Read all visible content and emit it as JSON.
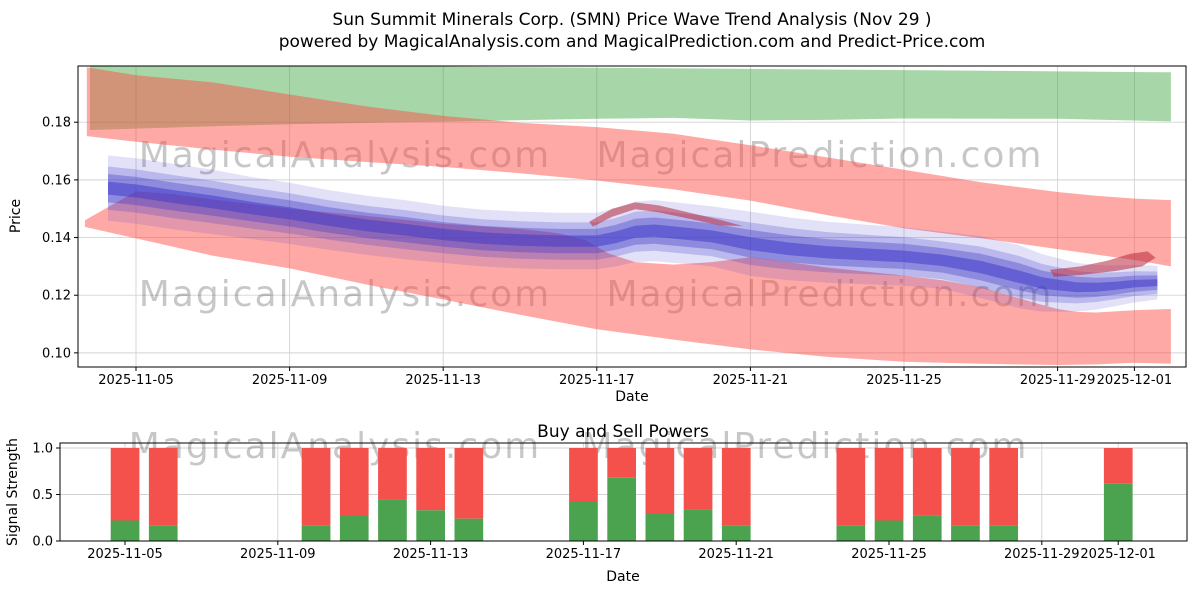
{
  "figure": {
    "title_line1": "Sun Summit Minerals Corp. (SMN) Price Wave Trend Analysis (Nov 29 )",
    "title_line2": "powered by MagicalAnalysis.com and MagicalPrediction.com and Predict-Price.com"
  },
  "watermarks": [
    "MagicalAnalysis.com",
    "MagicalPrediction.com"
  ],
  "colors": {
    "green_band": "#2e9e33",
    "green_alpha": 0.42,
    "red_band": "#ff4b46",
    "red_alpha": 0.48,
    "fan_color": "#3a35c8",
    "red_streak": "#b8283c",
    "bar_green": "#4ba34f",
    "bar_red": "#f4514c",
    "grid": "#d3d3d3",
    "watermark": "#8a8a8a",
    "axis": "#000000"
  },
  "chart_data": [
    {
      "type": "area",
      "name": "price-wave-trend",
      "ylabel": "Price",
      "xlabel": "Date",
      "ylim": [
        0.0951,
        0.1995
      ],
      "yticks": [
        "0.10",
        "0.12",
        "0.14",
        "0.16",
        "0.18"
      ],
      "ytick_values": [
        0.1,
        0.12,
        0.14,
        0.16,
        0.18
      ],
      "xticks": [
        {
          "label": "2025-11-05",
          "day": 0
        },
        {
          "label": "2025-11-09",
          "day": 4
        },
        {
          "label": "2025-11-13",
          "day": 8
        },
        {
          "label": "2025-11-17",
          "day": 12
        },
        {
          "label": "2025-11-21",
          "day": 16
        },
        {
          "label": "2025-11-25",
          "day": 20
        },
        {
          "label": "2025-11-29",
          "day": 24
        },
        {
          "label": "2025-12-01",
          "day": 26
        }
      ],
      "bands": {
        "green": {
          "top": [
            [
              -1.2,
              0.1997
            ],
            [
              8,
              0.1993
            ],
            [
              16,
              0.1985
            ],
            [
              26.95,
              0.1973
            ]
          ],
          "bottom": [
            [
              -1.2,
              0.1773
            ],
            [
              2,
              0.1786
            ],
            [
              4,
              0.1793
            ],
            [
              8,
              0.1802
            ],
            [
              12,
              0.1812
            ],
            [
              14,
              0.1815
            ],
            [
              16,
              0.1806
            ],
            [
              18,
              0.1808
            ],
            [
              20,
              0.1813
            ],
            [
              24,
              0.1812
            ],
            [
              26.95,
              0.1803
            ]
          ]
        },
        "red_upper": {
          "top": [
            [
              -1.28,
              0.199
            ],
            [
              0,
              0.1963
            ],
            [
              2,
              0.1938
            ],
            [
              4,
              0.1896
            ],
            [
              6,
              0.1855
            ],
            [
              8,
              0.1822
            ],
            [
              10,
              0.1798
            ],
            [
              12,
              0.1783
            ],
            [
              14,
              0.176
            ],
            [
              16,
              0.172
            ],
            [
              18,
              0.1678
            ],
            [
              20,
              0.1635
            ],
            [
              22,
              0.1592
            ],
            [
              24,
              0.1558
            ],
            [
              25,
              0.1545
            ],
            [
              26,
              0.1535
            ],
            [
              26.95,
              0.153
            ]
          ],
          "bottom": [
            [
              -1.28,
              0.1752
            ],
            [
              0,
              0.1732
            ],
            [
              2,
              0.1705
            ],
            [
              4,
              0.168
            ],
            [
              6,
              0.1662
            ],
            [
              8,
              0.1645
            ],
            [
              10,
              0.1623
            ],
            [
              12,
              0.1598
            ],
            [
              14,
              0.1567
            ],
            [
              16,
              0.1528
            ],
            [
              18,
              0.1478
            ],
            [
              20,
              0.1432
            ],
            [
              22,
              0.1398
            ],
            [
              24,
              0.136
            ],
            [
              26,
              0.1322
            ],
            [
              26.95,
              0.13
            ]
          ]
        },
        "red_lower": {
          "top": [
            [
              -1.33,
              0.146
            ],
            [
              0,
              0.156
            ],
            [
              1,
              0.155
            ],
            [
              2,
              0.1532
            ],
            [
              4,
              0.15
            ],
            [
              6,
              0.1475
            ],
            [
              8,
              0.1448
            ],
            [
              10,
              0.143
            ],
            [
              11,
              0.1415
            ],
            [
              11.7,
              0.1392
            ],
            [
              12.3,
              0.1345
            ],
            [
              13,
              0.1315
            ],
            [
              14,
              0.1306
            ],
            [
              15,
              0.1315
            ],
            [
              16,
              0.1332
            ],
            [
              17,
              0.1315
            ],
            [
              18,
              0.1296
            ],
            [
              19,
              0.1282
            ],
            [
              20,
              0.1268
            ],
            [
              21,
              0.1252
            ],
            [
              22,
              0.1228
            ],
            [
              23,
              0.119
            ],
            [
              23.5,
              0.117
            ],
            [
              24,
              0.1152
            ],
            [
              24.5,
              0.1142
            ],
            [
              25,
              0.114
            ],
            [
              26,
              0.1148
            ],
            [
              26.95,
              0.1152
            ]
          ],
          "bottom": [
            [
              -1.33,
              0.1437
            ],
            [
              0,
              0.1397
            ],
            [
              2,
              0.1337
            ],
            [
              4,
              0.1293
            ],
            [
              6,
              0.1237
            ],
            [
              8,
              0.1185
            ],
            [
              10,
              0.1132
            ],
            [
              12,
              0.1082
            ],
            [
              14,
              0.1046
            ],
            [
              16,
              0.1012
            ],
            [
              18,
              0.0986
            ],
            [
              20,
              0.0969
            ],
            [
              22,
              0.0962
            ],
            [
              24,
              0.0958
            ],
            [
              25,
              0.096
            ],
            [
              26,
              0.0966
            ],
            [
              26.95,
              0.0962
            ]
          ]
        }
      },
      "fan": {
        "days": [
          -0.73,
          0,
          1,
          2,
          3,
          4,
          5,
          6,
          7,
          8,
          9,
          10,
          11,
          12,
          12.5,
          13,
          13.5,
          14,
          15,
          16,
          17,
          18,
          19,
          20,
          21,
          22,
          23,
          23.6,
          24.5,
          25,
          25.5,
          26,
          26.6
        ],
        "top": [
          0.1685,
          0.1675,
          0.1655,
          0.1635,
          0.161,
          0.159,
          0.1565,
          0.1545,
          0.153,
          0.151,
          0.1497,
          0.149,
          0.1486,
          0.1486,
          0.1502,
          0.1525,
          0.153,
          0.1523,
          0.1508,
          0.149,
          0.147,
          0.1455,
          0.1445,
          0.1436,
          0.142,
          0.1405,
          0.1373,
          0.1342,
          0.1312,
          0.1305,
          0.1303,
          0.1305,
          0.1302
        ],
        "bottom": [
          0.1458,
          0.1448,
          0.1428,
          0.1412,
          0.1395,
          0.1378,
          0.1358,
          0.134,
          0.1325,
          0.1312,
          0.13,
          0.1293,
          0.129,
          0.129,
          0.13,
          0.1315,
          0.1318,
          0.1312,
          0.13,
          0.1267,
          0.1252,
          0.1243,
          0.1238,
          0.1233,
          0.1222,
          0.119,
          0.1155,
          0.1143,
          0.1143,
          0.115,
          0.1162,
          0.1175,
          0.1185
        ],
        "layers": [
          {
            "scale": 1.0,
            "opacity": 0.15
          },
          {
            "scale": 0.66,
            "opacity": 0.24
          },
          {
            "scale": 0.43,
            "opacity": 0.34
          },
          {
            "scale": 0.2,
            "opacity": 0.5
          }
        ]
      },
      "red_streaks": [
        [
          [
            11.8,
            0.1455
          ],
          [
            12.4,
            0.15
          ],
          [
            13,
            0.1522
          ],
          [
            13.6,
            0.1512
          ],
          [
            14.3,
            0.149
          ],
          [
            15.2,
            0.1462
          ],
          [
            15.8,
            0.144
          ],
          [
            15.2,
            0.1442
          ],
          [
            14.3,
            0.1468
          ],
          [
            13.6,
            0.1488
          ],
          [
            13,
            0.1498
          ],
          [
            12.4,
            0.1472
          ],
          [
            11.9,
            0.1438
          ]
        ],
        [
          [
            23.8,
            0.1288
          ],
          [
            24.6,
            0.13
          ],
          [
            25.3,
            0.132
          ],
          [
            25.9,
            0.1344
          ],
          [
            26.35,
            0.1352
          ],
          [
            26.55,
            0.133
          ],
          [
            26.2,
            0.13
          ],
          [
            25.5,
            0.1284
          ],
          [
            24.6,
            0.127
          ],
          [
            23.9,
            0.1264
          ]
        ]
      ]
    },
    {
      "type": "bar",
      "name": "buy-sell-powers",
      "title": "Buy and Sell Powers",
      "ylabel": "Signal Strength",
      "xlabel": "Date",
      "ylim": [
        0,
        1.054
      ],
      "yticks": [
        "0.0",
        "0.5",
        "1.0"
      ],
      "ytick_values": [
        0.0,
        0.5,
        1.0
      ],
      "xticks": [
        {
          "label": "2025-11-05",
          "day": 0
        },
        {
          "label": "2025-11-09",
          "day": 4
        },
        {
          "label": "2025-11-13",
          "day": 8
        },
        {
          "label": "2025-11-17",
          "day": 12
        },
        {
          "label": "2025-11-21",
          "day": 16
        },
        {
          "label": "2025-11-25",
          "day": 20
        },
        {
          "label": "2025-11-29",
          "day": 24
        },
        {
          "label": "2025-12-01",
          "day": 26
        }
      ],
      "series": [
        {
          "name": "buy",
          "color_key": "bar_green"
        },
        {
          "name": "sell",
          "color_key": "bar_red"
        }
      ],
      "bars": [
        {
          "date": "2025-11-05",
          "day": 0,
          "buy": 0.22,
          "sell": 0.78
        },
        {
          "date": "2025-11-06",
          "day": 1,
          "buy": 0.17,
          "sell": 0.83
        },
        {
          "date": "2025-11-10",
          "day": 5,
          "buy": 0.17,
          "sell": 0.83
        },
        {
          "date": "2025-11-11",
          "day": 6,
          "buy": 0.28,
          "sell": 0.72
        },
        {
          "date": "2025-11-12",
          "day": 7,
          "buy": 0.45,
          "sell": 0.55
        },
        {
          "date": "2025-11-13",
          "day": 8,
          "buy": 0.33,
          "sell": 0.67
        },
        {
          "date": "2025-11-14",
          "day": 9,
          "buy": 0.24,
          "sell": 0.76
        },
        {
          "date": "2025-11-17",
          "day": 12,
          "buy": 0.43,
          "sell": 0.57
        },
        {
          "date": "2025-11-18",
          "day": 13,
          "buy": 0.68,
          "sell": 0.32
        },
        {
          "date": "2025-11-19",
          "day": 14,
          "buy": 0.29,
          "sell": 0.71
        },
        {
          "date": "2025-11-20",
          "day": 15,
          "buy": 0.34,
          "sell": 0.66
        },
        {
          "date": "2025-11-21",
          "day": 16,
          "buy": 0.17,
          "sell": 0.83
        },
        {
          "date": "2025-11-24",
          "day": 19,
          "buy": 0.17,
          "sell": 0.83
        },
        {
          "date": "2025-11-25",
          "day": 20,
          "buy": 0.22,
          "sell": 0.78
        },
        {
          "date": "2025-11-26",
          "day": 21,
          "buy": 0.27,
          "sell": 0.73
        },
        {
          "date": "2025-11-27",
          "day": 22,
          "buy": 0.17,
          "sell": 0.83
        },
        {
          "date": "2025-11-28",
          "day": 23,
          "buy": 0.17,
          "sell": 0.83
        },
        {
          "date": "2025-12-01",
          "day": 26,
          "buy": 0.62,
          "sell": 0.38
        }
      ]
    }
  ]
}
